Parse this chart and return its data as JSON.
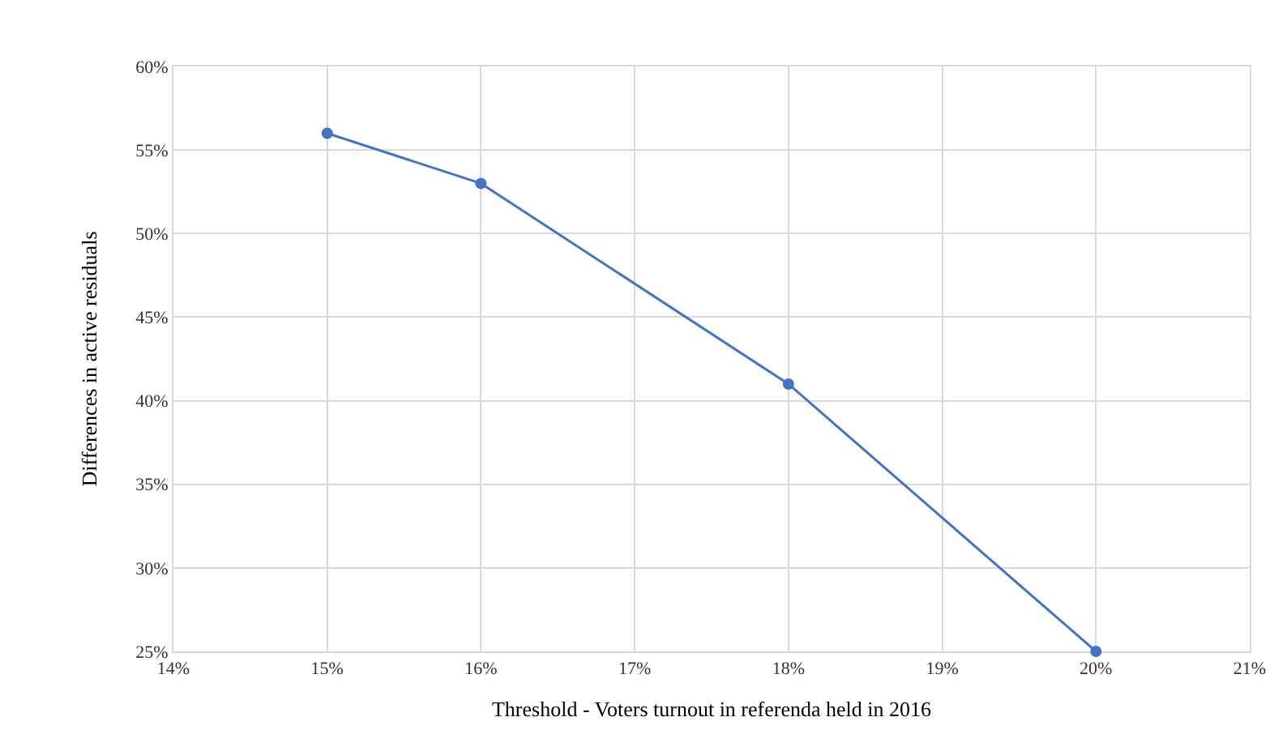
{
  "chart_data": {
    "type": "line",
    "xlabel": "Threshold - Voters turnout in referenda held in 2016",
    "ylabel": "Differences in active residuals",
    "x": [
      15,
      16,
      18,
      20
    ],
    "values": [
      56,
      53,
      41,
      25
    ],
    "color": "#4472c4",
    "marker": "circle",
    "line_style": "solid",
    "xlim": [
      14,
      21
    ],
    "ylim": [
      25,
      60
    ],
    "xticks": [
      {
        "value": 14,
        "label": "14%"
      },
      {
        "value": 15,
        "label": "15%"
      },
      {
        "value": 16,
        "label": "16%"
      },
      {
        "value": 17,
        "label": "17%"
      },
      {
        "value": 18,
        "label": "18%"
      },
      {
        "value": 19,
        "label": "19%"
      },
      {
        "value": 20,
        "label": "20%"
      },
      {
        "value": 21,
        "label": "21%"
      }
    ],
    "yticks": [
      {
        "value": 25,
        "label": "25%"
      },
      {
        "value": 30,
        "label": "30%"
      },
      {
        "value": 35,
        "label": "35%"
      },
      {
        "value": 40,
        "label": "40%"
      },
      {
        "value": 45,
        "label": "45%"
      },
      {
        "value": 50,
        "label": "50%"
      },
      {
        "value": 55,
        "label": "55%"
      },
      {
        "value": 60,
        "label": "60%"
      }
    ],
    "grid": true
  }
}
